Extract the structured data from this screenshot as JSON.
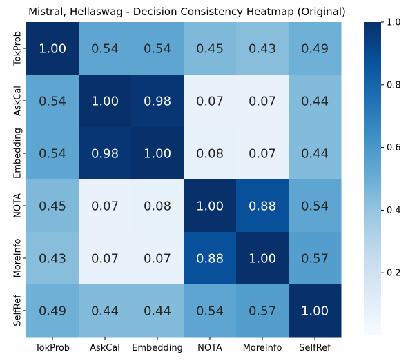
{
  "chart_data": {
    "type": "heatmap",
    "title": "Mistral, Hellaswag - Decision Consistency Heatmap (Original)",
    "xlabel": "",
    "ylabel": "",
    "x_categories": [
      "TokProb",
      "AskCal",
      "Embedding",
      "NOTA",
      "MoreInfo",
      "SelfRef"
    ],
    "y_categories": [
      "TokProb",
      "AskCal",
      "Embedding",
      "NOTA",
      "MoreInfo",
      "SelfRef"
    ],
    "values": [
      [
        1.0,
        0.54,
        0.54,
        0.45,
        0.43,
        0.49
      ],
      [
        0.54,
        1.0,
        0.98,
        0.07,
        0.07,
        0.44
      ],
      [
        0.54,
        0.98,
        1.0,
        0.08,
        0.07,
        0.44
      ],
      [
        0.45,
        0.07,
        0.08,
        1.0,
        0.88,
        0.54
      ],
      [
        0.43,
        0.07,
        0.07,
        0.88,
        1.0,
        0.57
      ],
      [
        0.49,
        0.44,
        0.44,
        0.54,
        0.57,
        1.0
      ]
    ],
    "cell_labels": [
      [
        "1.00",
        "0.54",
        "0.54",
        "0.45",
        "0.43",
        "0.49"
      ],
      [
        "0.54",
        "1.00",
        "0.98",
        "0.07",
        "0.07",
        "0.44"
      ],
      [
        "0.54",
        "0.98",
        "1.00",
        "0.08",
        "0.07",
        "0.44"
      ],
      [
        "0.45",
        "0.07",
        "0.08",
        "1.00",
        "0.88",
        "0.54"
      ],
      [
        "0.43",
        "0.07",
        "0.07",
        "0.88",
        "1.00",
        "0.57"
      ],
      [
        "0.49",
        "0.44",
        "0.44",
        "0.54",
        "0.57",
        "1.00"
      ]
    ],
    "colormap": "Blues",
    "color_stops": [
      "#f7fbff",
      "#deebf7",
      "#c6dbef",
      "#9ecae1",
      "#6baed6",
      "#4292c6",
      "#2171b5",
      "#08519c",
      "#08306b"
    ],
    "colorbar": {
      "range": [
        0.0,
        1.0
      ],
      "ticks": [
        0.2,
        0.4,
        0.6,
        0.8,
        1.0
      ],
      "tick_labels": [
        "0.2",
        "0.4",
        "0.6",
        "0.8",
        "1.0"
      ]
    },
    "grid": false,
    "legend": "colorbar-right"
  }
}
